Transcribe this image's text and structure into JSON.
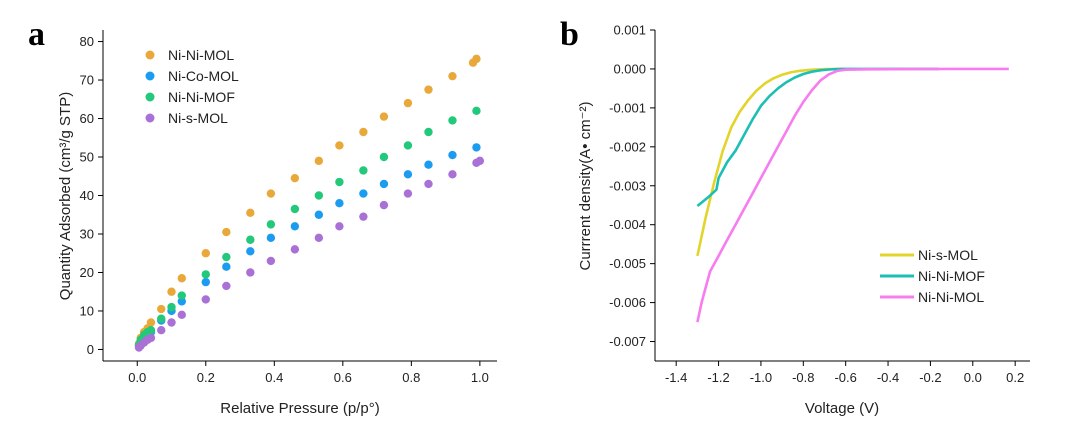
{
  "chart_data": [
    {
      "panel": "a",
      "type": "scatter",
      "xlabel": "Relative Pressure (p/p°)",
      "ylabel": "Quantity Adsorbed (cm³/g STP)",
      "xlim": [
        -0.1,
        1.05
      ],
      "ylim": [
        -3,
        83
      ],
      "xticks": [
        0.0,
        0.2,
        0.4,
        0.6,
        0.8,
        1.0
      ],
      "xtick_labels": [
        "0.0",
        "0.2",
        "0.4",
        "0.6",
        "0.8",
        "1.0"
      ],
      "yticks": [
        0,
        10,
        20,
        30,
        40,
        50,
        60,
        70,
        80
      ],
      "ytick_labels": [
        "0",
        "10",
        "20",
        "30",
        "40",
        "50",
        "60",
        "70",
        "80"
      ],
      "grid": false,
      "legend_position": "top-left",
      "series": [
        {
          "name": "Ni-Ni-MOL",
          "color": "#e9a93a",
          "x": [
            0.005,
            0.01,
            0.02,
            0.03,
            0.04,
            0.07,
            0.1,
            0.13,
            0.2,
            0.26,
            0.33,
            0.39,
            0.46,
            0.53,
            0.59,
            0.66,
            0.72,
            0.79,
            0.85,
            0.92,
            0.98,
            0.99
          ],
          "y": [
            1.5,
            3,
            4.5,
            5.5,
            7,
            10.5,
            15,
            18.5,
            25,
            30.5,
            35.5,
            40.5,
            44.5,
            49,
            53,
            56.5,
            60.5,
            64,
            67.5,
            71,
            74.5,
            75.5
          ]
        },
        {
          "name": "Ni-Co-MOL",
          "color": "#1c9cf0",
          "x": [
            0.005,
            0.01,
            0.02,
            0.03,
            0.04,
            0.07,
            0.1,
            0.13,
            0.2,
            0.26,
            0.33,
            0.39,
            0.46,
            0.53,
            0.59,
            0.66,
            0.72,
            0.79,
            0.85,
            0.92,
            0.99
          ],
          "y": [
            1,
            2,
            3,
            3.8,
            4.5,
            7.5,
            10,
            12.5,
            17.5,
            21.5,
            25.5,
            29,
            32,
            35,
            38,
            40.5,
            43,
            45.5,
            48,
            50.5,
            52.5
          ]
        },
        {
          "name": "Ni-Ni-MOF",
          "color": "#22c97a",
          "x": [
            0.005,
            0.01,
            0.02,
            0.03,
            0.04,
            0.07,
            0.1,
            0.13,
            0.2,
            0.26,
            0.33,
            0.39,
            0.46,
            0.53,
            0.59,
            0.66,
            0.72,
            0.79,
            0.85,
            0.92,
            0.99
          ],
          "y": [
            1.2,
            2.5,
            3.8,
            4.5,
            5,
            8,
            11,
            14,
            19.5,
            24,
            28.5,
            32.5,
            36.5,
            40,
            43.5,
            46.5,
            50,
            53,
            56.5,
            59.5,
            62
          ]
        },
        {
          "name": "Ni-s-MOL",
          "color": "#a971d6",
          "x": [
            0.005,
            0.01,
            0.02,
            0.03,
            0.04,
            0.07,
            0.1,
            0.13,
            0.2,
            0.26,
            0.33,
            0.39,
            0.46,
            0.53,
            0.59,
            0.66,
            0.72,
            0.79,
            0.85,
            0.92,
            0.99,
            1.0
          ],
          "y": [
            0.5,
            1,
            1.8,
            2.5,
            3,
            5,
            7,
            9,
            13,
            16.5,
            20,
            23,
            26,
            29,
            32,
            34.5,
            37.5,
            40.5,
            43,
            45.5,
            48.5,
            49
          ]
        }
      ]
    },
    {
      "panel": "b",
      "type": "line",
      "xlabel": "Voltage (V)",
      "ylabel": "Currrent density(A• cm⁻²)",
      "xlim": [
        -1.5,
        0.27
      ],
      "ylim": [
        -0.0075,
        0.001
      ],
      "xticks": [
        -1.4,
        -1.2,
        -1.0,
        -0.8,
        -0.6,
        -0.4,
        -0.2,
        0.0,
        0.2
      ],
      "xtick_labels": [
        "-1.4",
        "-1.2",
        "-1.0",
        "-0.8",
        "-0.6",
        "-0.4",
        "-0.2",
        "0.0",
        "0.2"
      ],
      "yticks": [
        0.001,
        0.0,
        -0.001,
        -0.002,
        -0.003,
        -0.004,
        -0.005,
        -0.006,
        -0.007
      ],
      "ytick_labels": [
        "0.001",
        "0.000",
        "-0.001",
        "-0.002",
        "-0.003",
        "-0.004",
        "-0.005",
        "-0.006",
        "-0.007"
      ],
      "grid": false,
      "legend_position": "bottom-right",
      "series": [
        {
          "name": "Ni-s-MOL",
          "color": "#e3d42b",
          "x": [
            -1.3,
            -1.26,
            -1.22,
            -1.18,
            -1.14,
            -1.1,
            -1.06,
            -1.02,
            -0.98,
            -0.94,
            -0.9,
            -0.86,
            -0.82,
            -0.78,
            -0.74,
            -0.7,
            -0.66,
            -0.62,
            -0.6
          ],
          "y": [
            -0.0048,
            -0.0038,
            -0.0029,
            -0.0021,
            -0.0015,
            -0.0011,
            -0.0008,
            -0.00055,
            -0.00037,
            -0.00024,
            -0.00015,
            -9e-05,
            -5e-05,
            -3e-05,
            -1.5e-05,
            -6e-06,
            -2e-06,
            0,
            0
          ]
        },
        {
          "name": "Ni-Ni-MOF",
          "color": "#1cbfb5",
          "x": [
            -1.3,
            -1.25,
            -1.21,
            -1.2,
            -1.18,
            -1.16,
            -1.12,
            -1.08,
            -1.04,
            -1.0,
            -0.96,
            -0.92,
            -0.88,
            -0.84,
            -0.8,
            -0.76,
            -0.72,
            -0.68,
            -0.64,
            -0.6,
            -0.4,
            -0.16
          ],
          "y": [
            -0.00352,
            -0.0033,
            -0.0031,
            -0.0028,
            -0.0026,
            -0.0024,
            -0.0021,
            -0.0017,
            -0.0013,
            -0.00095,
            -0.0007,
            -0.0005,
            -0.00034,
            -0.00022,
            -0.00013,
            -7e-05,
            -3.5e-05,
            -1.5e-05,
            -5e-06,
            0,
            0,
            0
          ]
        },
        {
          "name": "Ni-Ni-MOL",
          "color": "#f77cf0",
          "x": [
            -1.3,
            -1.28,
            -1.26,
            -1.24,
            -1.2,
            -1.16,
            -1.12,
            -1.08,
            -1.04,
            -1.0,
            -0.96,
            -0.92,
            -0.88,
            -0.84,
            -0.8,
            -0.76,
            -0.72,
            -0.68,
            -0.64,
            -0.6,
            -0.5,
            -0.3,
            -0.1,
            0.0,
            0.17
          ],
          "y": [
            -0.0065,
            -0.006,
            -0.0056,
            -0.0052,
            -0.0048,
            -0.0044,
            -0.004,
            -0.0036,
            -0.0032,
            -0.0028,
            -0.0024,
            -0.002,
            -0.0016,
            -0.0012,
            -0.00085,
            -0.00055,
            -0.0003,
            -0.00014,
            -5e-05,
            -2e-05,
            -1e-05,
            -5e-06,
            0,
            0,
            0
          ]
        }
      ]
    }
  ]
}
